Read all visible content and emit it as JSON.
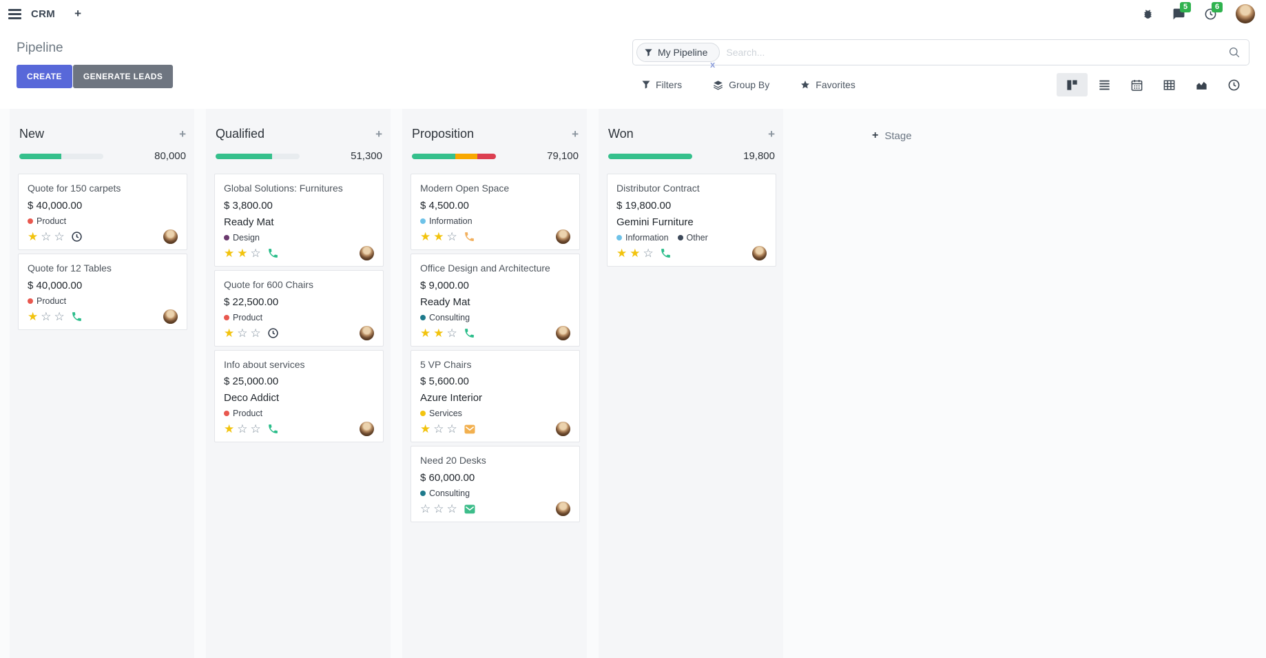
{
  "navbar": {
    "app_name": "CRM",
    "add_tab_label": "+",
    "badges": {
      "messages": "5",
      "activities": "6"
    }
  },
  "control_panel": {
    "title": "Pipeline",
    "buttons": {
      "create": "CREATE",
      "generate_leads": "GENERATE LEADS"
    },
    "search": {
      "facet_label": "My Pipeline",
      "facet_remove": "x",
      "placeholder": "Search..."
    },
    "menus": {
      "filters": "Filters",
      "group_by": "Group By",
      "favorites": "Favorites"
    },
    "view_switcher": {
      "active": "kanban",
      "views": [
        "kanban",
        "list",
        "calendar",
        "pivot",
        "graph",
        "activity"
      ]
    }
  },
  "colors": {
    "create_button": "#5868d9",
    "generate_button": "#6e7580",
    "badge_green": "#2fb24e",
    "progress_green": "#35c08c",
    "progress_orange": "#f8a800",
    "progress_red": "#dc3f51"
  },
  "board": {
    "add_stage_label": "Stage",
    "columns": [
      {
        "title": "New",
        "total": "80,000",
        "progress": [
          {
            "color": "#35c08c",
            "pct": 50
          }
        ],
        "cards": [
          {
            "title": "Quote for 150 carpets",
            "amount": "$ 40,000.00",
            "partner": "",
            "tags": [
              {
                "label": "Product",
                "color": "#e8584f"
              }
            ],
            "stars_filled": 1,
            "activity": {
              "type": "clock",
              "color": "#2c3645"
            }
          },
          {
            "title": "Quote for 12 Tables",
            "amount": "$ 40,000.00",
            "partner": "",
            "tags": [
              {
                "label": "Product",
                "color": "#e8584f"
              }
            ],
            "stars_filled": 1,
            "activity": {
              "type": "phone",
              "color": "#2abd8a"
            }
          }
        ]
      },
      {
        "title": "Qualified",
        "total": "51,300",
        "progress": [
          {
            "color": "#35c08c",
            "pct": 67
          }
        ],
        "cards": [
          {
            "title": "Global Solutions: Furnitures",
            "amount": "$ 3,800.00",
            "partner": "Ready Mat",
            "tags": [
              {
                "label": "Design",
                "color": "#6b3a6e"
              }
            ],
            "stars_filled": 2,
            "activity": {
              "type": "phone",
              "color": "#2abd8a"
            }
          },
          {
            "title": "Quote for 600 Chairs",
            "amount": "$ 22,500.00",
            "partner": "",
            "tags": [
              {
                "label": "Product",
                "color": "#e8584f"
              }
            ],
            "stars_filled": 1,
            "activity": {
              "type": "clock",
              "color": "#2c3645"
            }
          },
          {
            "title": "Info about services",
            "amount": "$ 25,000.00",
            "partner": "Deco Addict",
            "tags": [
              {
                "label": "Product",
                "color": "#e8584f"
              }
            ],
            "stars_filled": 1,
            "activity": {
              "type": "phone",
              "color": "#2abd8a"
            }
          }
        ]
      },
      {
        "title": "Proposition",
        "total": "79,100",
        "progress": [
          {
            "color": "#35c08c",
            "pct": 52
          },
          {
            "color": "#f8a800",
            "pct": 26
          },
          {
            "color": "#dc3f51",
            "pct": 22
          }
        ],
        "cards": [
          {
            "title": "Modern Open Space",
            "amount": "$ 4,500.00",
            "partner": "",
            "tags": [
              {
                "label": "Information",
                "color": "#6ec2e8"
              }
            ],
            "stars_filled": 2,
            "activity": {
              "type": "phone",
              "color": "#f2b05e"
            }
          },
          {
            "title": "Office Design and Architecture",
            "amount": "$ 9,000.00",
            "partner": "Ready Mat",
            "tags": [
              {
                "label": "Consulting",
                "color": "#1e7a8c"
              }
            ],
            "stars_filled": 2,
            "activity": {
              "type": "phone",
              "color": "#2abd8a"
            }
          },
          {
            "title": "5 VP Chairs",
            "amount": "$ 5,600.00",
            "partner": "Azure Interior",
            "tags": [
              {
                "label": "Services",
                "color": "#f2c40f"
              }
            ],
            "stars_filled": 1,
            "activity": {
              "type": "envelope",
              "color": "#f2b04f"
            }
          },
          {
            "title": "Need 20 Desks",
            "amount": "$ 60,000.00",
            "partner": "",
            "tags": [
              {
                "label": "Consulting",
                "color": "#1e7a8c"
              }
            ],
            "stars_filled": 0,
            "activity": {
              "type": "envelope",
              "color": "#3dbd8a"
            }
          }
        ]
      },
      {
        "title": "Won",
        "total": "19,800",
        "progress": [
          {
            "color": "#35c08c",
            "pct": 100
          }
        ],
        "cards": [
          {
            "title": "Distributor Contract",
            "amount": "$ 19,800.00",
            "partner": "Gemini Furniture",
            "tags": [
              {
                "label": "Information",
                "color": "#6ec2e8"
              },
              {
                "label": "Other",
                "color": "#3e4a5a"
              }
            ],
            "stars_filled": 2,
            "activity": {
              "type": "phone",
              "color": "#2abd8a"
            }
          }
        ]
      }
    ]
  }
}
